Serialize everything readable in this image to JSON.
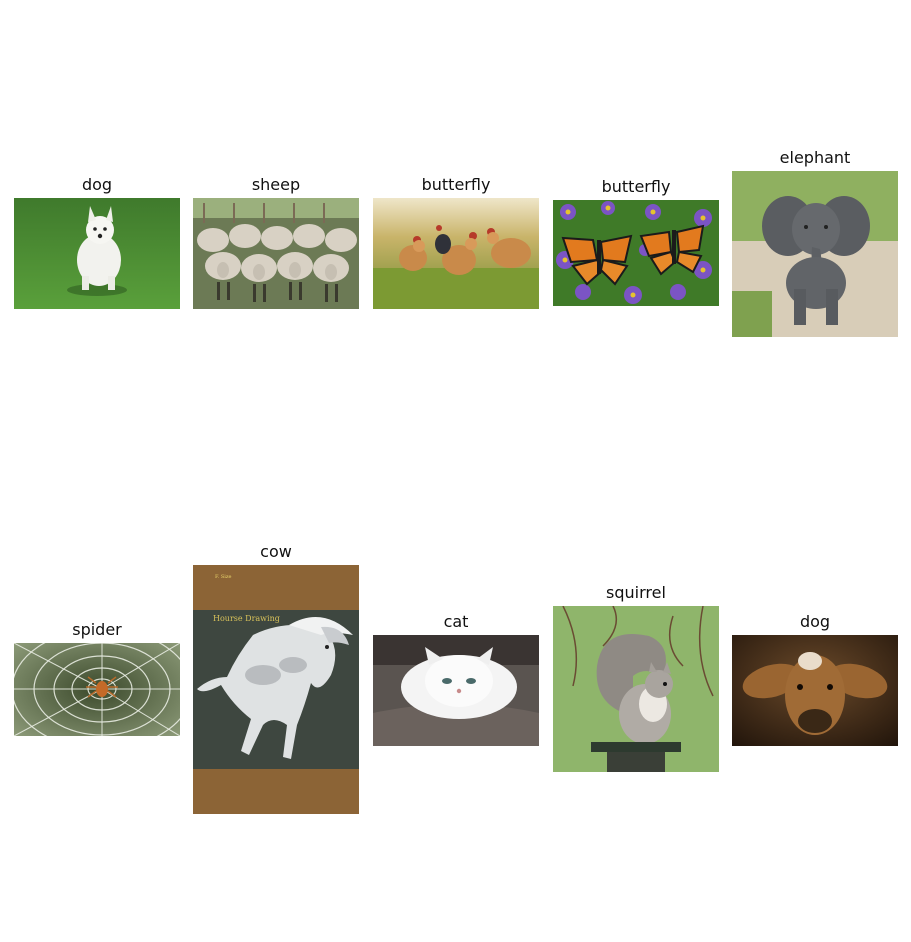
{
  "grid": {
    "rows": [
      {
        "items": [
          {
            "label": "dog",
            "icon": "west-highland-terrier-photo"
          },
          {
            "label": "sheep",
            "icon": "sheep-flock-photo"
          },
          {
            "label": "butterfly",
            "icon": "chickens-in-grass-photo"
          },
          {
            "label": "butterfly",
            "icon": "monarch-butterflies-photo"
          },
          {
            "label": "elephant",
            "icon": "baby-elephant-photo"
          }
        ]
      },
      {
        "items": [
          {
            "label": "spider",
            "icon": "spider-web-photo"
          },
          {
            "label": "cow",
            "icon": "white-horse-book-cover-photo",
            "image_text": "Hourse Drawing"
          },
          {
            "label": "cat",
            "icon": "white-persian-cat-photo"
          },
          {
            "label": "squirrel",
            "icon": "gray-squirrel-photo"
          },
          {
            "label": "dog",
            "icon": "brown-calf-photo"
          }
        ]
      }
    ]
  }
}
